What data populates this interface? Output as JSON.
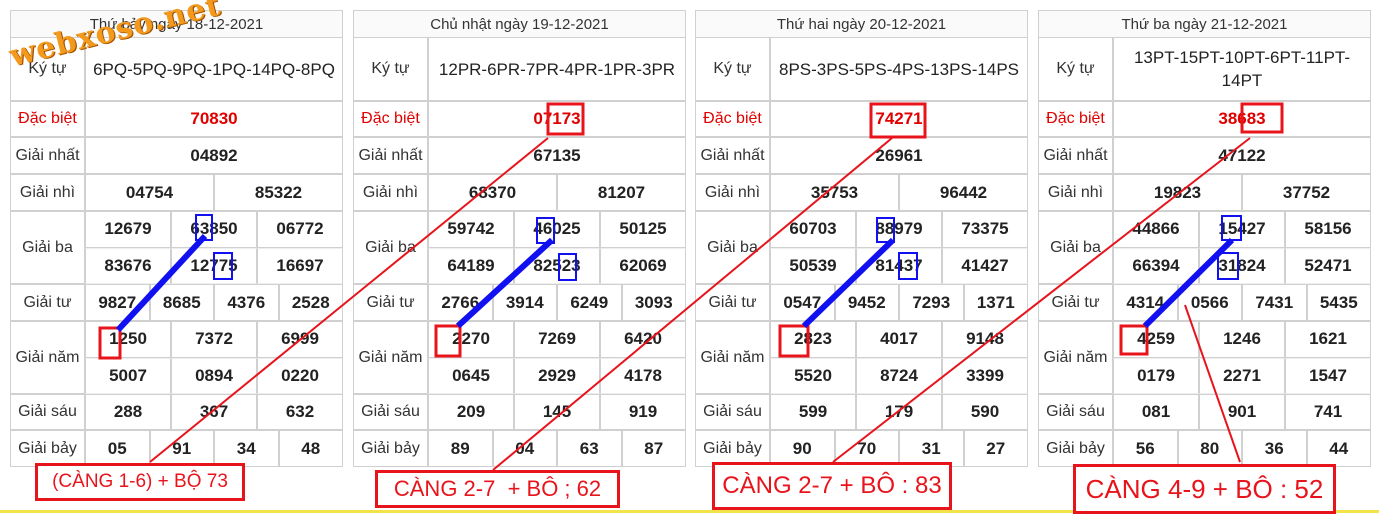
{
  "watermark": "webxoso.net",
  "tables": [
    {
      "title": "Thứ bảy ngày 18-12-2021",
      "rows": [
        {
          "label": "Ký tự",
          "values": [
            "6PQ-5PQ-9PQ-1PQ-14PQ-8PQ"
          ]
        },
        {
          "label": "Đặc biệt",
          "values": [
            "70830"
          ]
        },
        {
          "label": "Giải nhất",
          "values": [
            "04892"
          ]
        },
        {
          "label": "Giải nhì",
          "values": [
            "04754",
            "85322"
          ]
        },
        {
          "label": "Giải ba",
          "values": [
            "12679",
            "63850",
            "06772",
            "83676",
            "12775",
            "16697"
          ]
        },
        {
          "label": "Giải tư",
          "values": [
            "9827",
            "8685",
            "4376",
            "2528"
          ]
        },
        {
          "label": "Giải năm",
          "values": [
            "1250",
            "7372",
            "6999",
            "5007",
            "0894",
            "0220"
          ]
        },
        {
          "label": "Giải sáu",
          "values": [
            "288",
            "367",
            "632"
          ]
        },
        {
          "label": "Giải bảy",
          "values": [
            "05",
            "91",
            "34",
            "48"
          ]
        }
      ]
    },
    {
      "title": "Chủ nhật ngày 19-12-2021",
      "rows": [
        {
          "label": "Ký tự",
          "values": [
            "12PR-6PR-7PR-4PR-1PR-3PR"
          ]
        },
        {
          "label": "Đặc biệt",
          "values": [
            "07173"
          ]
        },
        {
          "label": "Giải nhất",
          "values": [
            "67135"
          ]
        },
        {
          "label": "Giải nhì",
          "values": [
            "68370",
            "81207"
          ]
        },
        {
          "label": "Giải ba",
          "values": [
            "59742",
            "46025",
            "50125",
            "64189",
            "82523",
            "62069"
          ]
        },
        {
          "label": "Giải tư",
          "values": [
            "2766",
            "3914",
            "6249",
            "3093"
          ]
        },
        {
          "label": "Giải năm",
          "values": [
            "2270",
            "7269",
            "6420",
            "0645",
            "2929",
            "4178"
          ]
        },
        {
          "label": "Giải sáu",
          "values": [
            "209",
            "145",
            "919"
          ]
        },
        {
          "label": "Giải bảy",
          "values": [
            "89",
            "04",
            "63",
            "87"
          ]
        }
      ]
    },
    {
      "title": "Thứ hai ngày 20-12-2021",
      "rows": [
        {
          "label": "Ký tự",
          "values": [
            "8PS-3PS-5PS-4PS-13PS-14PS"
          ]
        },
        {
          "label": "Đặc biệt",
          "values": [
            "74271"
          ]
        },
        {
          "label": "Giải nhất",
          "values": [
            "26961"
          ]
        },
        {
          "label": "Giải nhì",
          "values": [
            "35753",
            "96442"
          ]
        },
        {
          "label": "Giải ba",
          "values": [
            "60703",
            "88979",
            "73375",
            "50539",
            "81437",
            "41427"
          ]
        },
        {
          "label": "Giải tư",
          "values": [
            "0547",
            "9452",
            "7293",
            "1371"
          ]
        },
        {
          "label": "Giải năm",
          "values": [
            "2823",
            "4017",
            "9148",
            "5520",
            "8724",
            "3399"
          ]
        },
        {
          "label": "Giải sáu",
          "values": [
            "599",
            "179",
            "590"
          ]
        },
        {
          "label": "Giải bảy",
          "values": [
            "90",
            "70",
            "31",
            "27"
          ]
        }
      ]
    },
    {
      "title": "Thứ ba ngày 21-12-2021",
      "rows": [
        {
          "label": "Ký tự",
          "values": [
            "13PT-15PT-10PT-6PT-11PT-14PT"
          ]
        },
        {
          "label": "Đặc biệt",
          "values": [
            "38683"
          ]
        },
        {
          "label": "Giải nhất",
          "values": [
            "47122"
          ]
        },
        {
          "label": "Giải nhì",
          "values": [
            "19823",
            "37752"
          ]
        },
        {
          "label": "Giải ba",
          "values": [
            "44866",
            "15427",
            "58156",
            "66394",
            "31824",
            "52471"
          ]
        },
        {
          "label": "Giải tư",
          "values": [
            "4314",
            "0566",
            "7431",
            "5435"
          ]
        },
        {
          "label": "Giải năm",
          "values": [
            "4259",
            "1246",
            "1621",
            "0179",
            "2271",
            "1547"
          ]
        },
        {
          "label": "Giải sáu",
          "values": [
            "081",
            "901",
            "741"
          ]
        },
        {
          "label": "Giải bảy",
          "values": [
            "56",
            "80",
            "36",
            "44"
          ]
        }
      ]
    }
  ],
  "notes": [
    "(CÀNG 1-6) + BỘ 73",
    "CÀNG 2-7  + BÔ ; 62",
    "CÀNG 2-7 + BÔ : 83",
    "CÀNG 4-9 + BÔ : 52"
  ]
}
